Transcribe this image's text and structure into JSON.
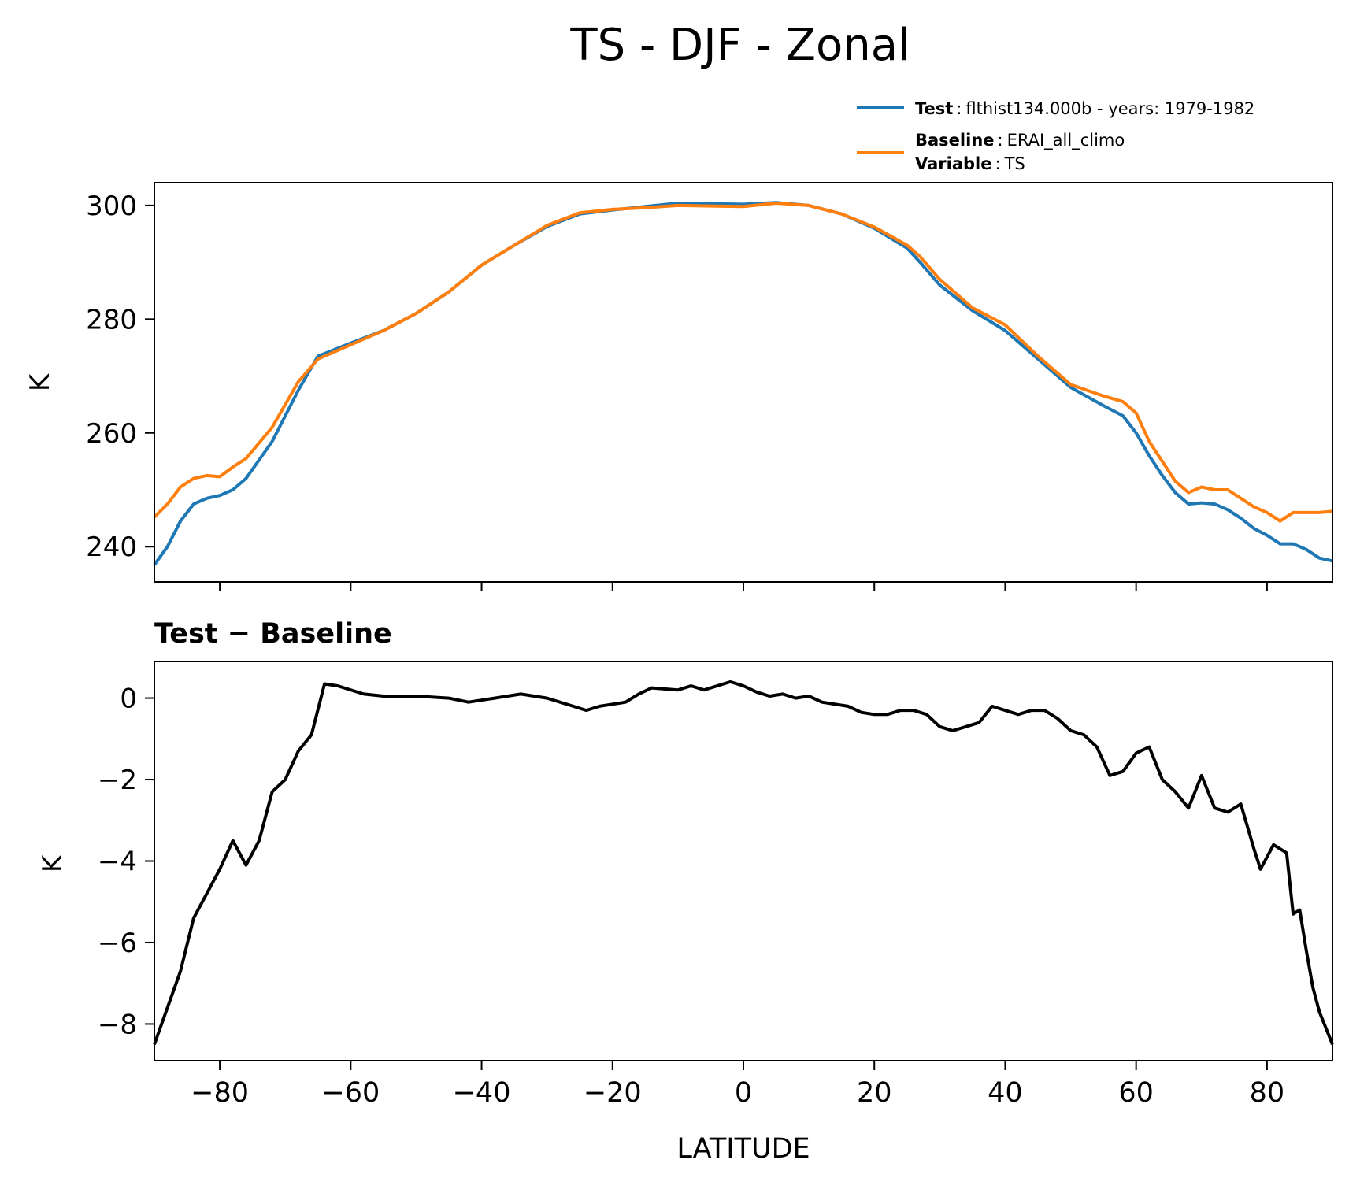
{
  "title": "TS - DJF - Zonal",
  "legend": {
    "test_label": "Test",
    "test_value": "flthist134.000b - years: 1979-1982",
    "baseline_label": "Baseline",
    "baseline_value": "ERAI_all_climo",
    "variable_label": "Variable",
    "variable_value": "TS",
    "sep": ":"
  },
  "colors": {
    "test": "#1f77b4",
    "baseline": "#ff7f0e",
    "diff": "#000000"
  },
  "chart_data": [
    {
      "type": "line",
      "panel": "top",
      "title": "",
      "xlabel": "",
      "ylabel": "K",
      "xlim": [
        -90,
        90
      ],
      "ylim": [
        233.8,
        304
      ],
      "yticks": [
        240,
        260,
        280,
        300
      ],
      "xticks": [
        -80,
        -60,
        -40,
        -20,
        0,
        20,
        40,
        60,
        80
      ],
      "grid": false,
      "legend_position": "above-right",
      "series": [
        {
          "name": "Test",
          "x": [
            -90,
            -88,
            -86,
            -84,
            -82,
            -80,
            -78,
            -76,
            -72,
            -68,
            -65,
            -60,
            -55,
            -50,
            -45,
            -40,
            -35,
            -30,
            -25,
            -20,
            -15,
            -10,
            -5,
            0,
            5,
            10,
            15,
            20,
            25,
            27,
            30,
            35,
            40,
            45,
            50,
            55,
            58,
            60,
            62,
            64,
            66,
            68,
            70,
            72,
            74,
            76,
            78,
            80,
            82,
            84,
            86,
            88,
            90
          ],
          "values": [
            236.8,
            240,
            244.5,
            247.5,
            248.5,
            249,
            250,
            252,
            258.5,
            267.5,
            273.5,
            275.8,
            278,
            281,
            284.8,
            289.5,
            293,
            296.3,
            298.5,
            299.2,
            299.8,
            300.4,
            300.3,
            300.2,
            300.5,
            300,
            298.5,
            296,
            292.5,
            290,
            286,
            281.5,
            278,
            273,
            268,
            264.8,
            263,
            260,
            256,
            252.5,
            249.5,
            247.5,
            247.7,
            247.5,
            246.5,
            245,
            243.2,
            242,
            240.5,
            240.5,
            239.5,
            238,
            237.5
          ]
        },
        {
          "name": "Baseline",
          "x": [
            -90,
            -88,
            -86,
            -84,
            -82,
            -80,
            -78,
            -76,
            -72,
            -68,
            -65,
            -60,
            -55,
            -50,
            -45,
            -40,
            -35,
            -30,
            -25,
            -20,
            -15,
            -10,
            -5,
            0,
            5,
            10,
            15,
            20,
            25,
            27,
            30,
            35,
            40,
            45,
            50,
            55,
            58,
            60,
            62,
            64,
            66,
            68,
            70,
            72,
            74,
            76,
            78,
            80,
            82,
            84,
            86,
            88,
            90
          ],
          "values": [
            245.2,
            247.5,
            250.5,
            252,
            252.5,
            252.3,
            254,
            255.5,
            261,
            269,
            273,
            275.5,
            278,
            281,
            284.8,
            289.5,
            293,
            296.5,
            298.7,
            299.3,
            299.6,
            300,
            299.9,
            299.8,
            300.4,
            300,
            298.5,
            296.2,
            293,
            291,
            287,
            282,
            279,
            273.5,
            268.5,
            266.5,
            265.5,
            263.5,
            258.5,
            255,
            251.5,
            249.5,
            250.5,
            250,
            250,
            248.5,
            247,
            246,
            244.5,
            246,
            246,
            246,
            246.2
          ]
        }
      ]
    },
    {
      "type": "line",
      "panel": "bottom",
      "title": "Test − Baseline",
      "xlabel": "LATITUDE",
      "ylabel": "K",
      "xlim": [
        -90,
        90
      ],
      "ylim": [
        -8.9,
        0.9
      ],
      "yticks": [
        0,
        -2,
        -4,
        -6,
        -8
      ],
      "ytick_labels": [
        "0",
        "−2",
        "−4",
        "−6",
        "−8"
      ],
      "xticks": [
        -80,
        -60,
        -40,
        -20,
        0,
        20,
        40,
        60,
        80
      ],
      "xtick_labels": [
        "−80",
        "−60",
        "−40",
        "−20",
        "0",
        "20",
        "40",
        "60",
        "80"
      ],
      "grid": false,
      "series": [
        {
          "name": "",
          "x": [
            -90,
            -88,
            -86,
            -84,
            -82,
            -80,
            -78,
            -76,
            -74,
            -72,
            -70,
            -68,
            -66,
            -64,
            -62,
            -58,
            -55,
            -50,
            -45,
            -42,
            -38,
            -34,
            -30,
            -26,
            -24,
            -22,
            -20,
            -18,
            -16,
            -14,
            -10,
            -8,
            -6,
            -4,
            -2,
            0,
            2,
            4,
            6,
            8,
            10,
            12,
            14,
            16,
            18,
            20,
            22,
            24,
            26,
            28,
            30,
            32,
            34,
            36,
            38,
            40,
            42,
            44,
            46,
            48,
            50,
            52,
            54,
            56,
            58,
            60,
            62,
            64,
            66,
            68,
            70,
            72,
            74,
            76,
            78,
            79,
            81,
            83,
            84,
            85,
            86,
            87,
            88,
            89,
            90
          ],
          "values": [
            -8.5,
            -7.6,
            -6.7,
            -5.4,
            -4.8,
            -4.2,
            -3.5,
            -4.1,
            -3.5,
            -2.3,
            -2,
            -1.3,
            -0.9,
            0.35,
            0.3,
            0.1,
            0.05,
            0.05,
            0,
            -0.1,
            0,
            0.1,
            0,
            -0.2,
            -0.3,
            -0.2,
            -0.15,
            -0.1,
            0.1,
            0.25,
            0.2,
            0.3,
            0.2,
            0.3,
            0.4,
            0.3,
            0.15,
            0.05,
            0.1,
            0,
            0.05,
            -0.1,
            -0.15,
            -0.2,
            -0.35,
            -0.4,
            -0.4,
            -0.3,
            -0.3,
            -0.4,
            -0.7,
            -0.8,
            -0.7,
            -0.6,
            -0.2,
            -0.3,
            -0.4,
            -0.3,
            -0.3,
            -0.5,
            -0.8,
            -0.9,
            -1.2,
            -1.9,
            -1.8,
            -1.35,
            -1.2,
            -2.0,
            -2.3,
            -2.7,
            -1.9,
            -2.7,
            -2.8,
            -2.6,
            -3.7,
            -4.2,
            -3.6,
            -3.8,
            -5.3,
            -5.2,
            -6.2,
            -7.1,
            -7.7,
            -8.1,
            -8.5
          ]
        }
      ]
    }
  ]
}
